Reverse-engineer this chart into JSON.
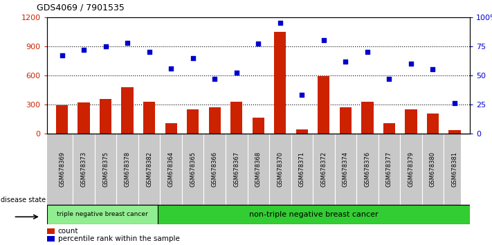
{
  "title": "GDS4069 / 7901535",
  "samples": [
    "GSM678369",
    "GSM678373",
    "GSM678375",
    "GSM678378",
    "GSM678382",
    "GSM678364",
    "GSM678365",
    "GSM678366",
    "GSM678367",
    "GSM678368",
    "GSM678370",
    "GSM678371",
    "GSM678372",
    "GSM678374",
    "GSM678376",
    "GSM678377",
    "GSM678379",
    "GSM678380",
    "GSM678381"
  ],
  "counts": [
    290,
    320,
    355,
    480,
    330,
    110,
    250,
    270,
    325,
    165,
    1050,
    45,
    590,
    268,
    330,
    108,
    248,
    205,
    38
  ],
  "percentiles": [
    67,
    72,
    75,
    78,
    70,
    56,
    65,
    47,
    52,
    77,
    95,
    33,
    80,
    62,
    70,
    47,
    60,
    55,
    26
  ],
  "group1_label": "triple negative breast cancer",
  "group2_label": "non-triple negative breast cancer",
  "group1_count": 5,
  "group2_count": 14,
  "bar_color": "#cc2200",
  "dot_color": "#0000cc",
  "bg_color": "#ffffff",
  "tick_bg": "#c8c8c8",
  "group1_bg": "#90ee90",
  "group2_bg": "#32cd32",
  "ylim_left": [
    0,
    1200
  ],
  "ylim_right": [
    0,
    100
  ],
  "yticks_left": [
    0,
    300,
    600,
    900,
    1200
  ],
  "yticks_right": [
    0,
    25,
    50,
    75,
    100
  ],
  "ytick_labels_left": [
    "0",
    "300",
    "600",
    "900",
    "1200"
  ],
  "ytick_labels_right": [
    "0",
    "25",
    "50",
    "75",
    "100%"
  ],
  "hgrid_at": [
    300,
    600,
    900
  ],
  "legend_count_label": "count",
  "legend_pct_label": "percentile rank within the sample",
  "disease_state_label": "disease state"
}
